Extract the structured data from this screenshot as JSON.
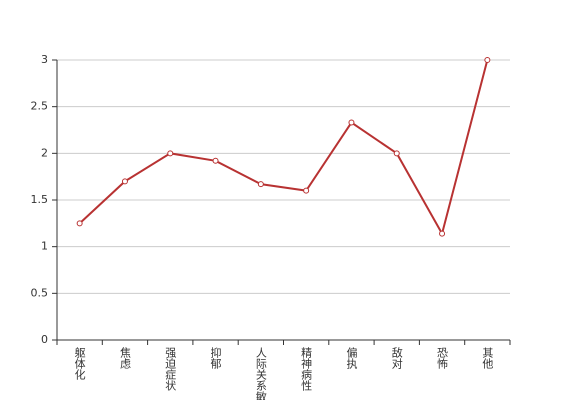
{
  "chart_data": {
    "type": "line",
    "categories": [
      "躯体化",
      "焦虑",
      "强迫症状",
      "抑郁",
      "人际关系敏感",
      "精神病性",
      "偏执",
      "敌对",
      "恐怖",
      "其他"
    ],
    "series": [
      {
        "color": "#b83232",
        "values": [
          1.25,
          1.7,
          2.0,
          1.92,
          1.67,
          1.6,
          2.33,
          2.0,
          1.14,
          3.0
        ]
      }
    ],
    "ylim": [
      0,
      3
    ],
    "yticks": [
      0,
      0.5,
      1,
      1.5,
      2,
      2.5,
      3
    ],
    "grid": true
  }
}
